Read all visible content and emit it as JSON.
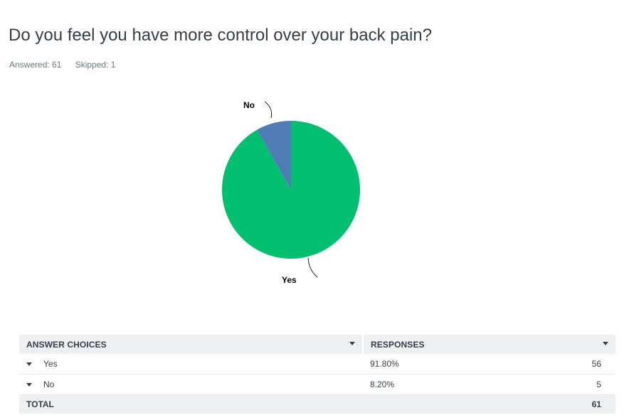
{
  "question": {
    "title": "Do you feel you have more control over your back pain?",
    "answered": "Answered: 61",
    "skipped": "Skipped: 1"
  },
  "chart_data": {
    "type": "pie",
    "slices": [
      {
        "label": "Yes",
        "value": 91.8,
        "color": "#00bf6f"
      },
      {
        "label": "No",
        "value": 8.2,
        "color": "#507cb6"
      }
    ]
  },
  "table": {
    "headers": {
      "choices": "ANSWER CHOICES",
      "responses": "RESPONSES"
    },
    "rows": [
      {
        "choice": "Yes",
        "percent": "91.80%",
        "count": "56"
      },
      {
        "choice": "No",
        "percent": "8.20%",
        "count": "5"
      }
    ],
    "total": {
      "label": "TOTAL",
      "count": "61"
    }
  }
}
